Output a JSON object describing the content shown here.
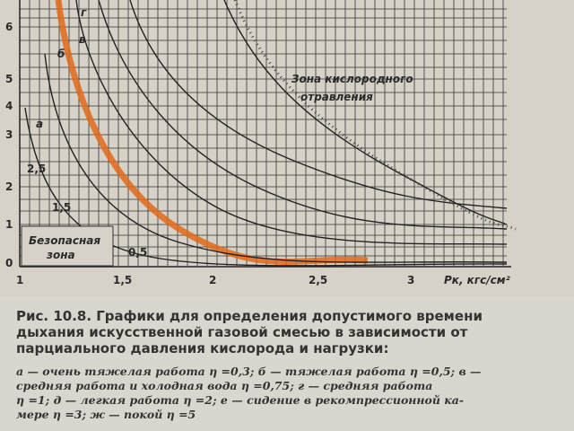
{
  "figure": {
    "y_labels": [
      "6",
      "5",
      "4",
      "3",
      "2",
      "1",
      "0"
    ],
    "inner_labels": [
      "2,5",
      "1,5",
      "0,5"
    ],
    "x_labels": [
      "1",
      "1,5",
      "2",
      "2,5",
      "3"
    ],
    "x_axis_title": "Pк, кгс/см²",
    "curve_labels": [
      "г",
      "в",
      "б",
      "а"
    ],
    "danger_zone": [
      "Зона кислородного",
      "отравления"
    ],
    "safe_zone": [
      "Безопасная",
      "зона"
    ]
  },
  "caption": {
    "title_lines": [
      "Рис. 10.8. Графики для определения допустимого времени",
      "дыхания искусственной газовой смесью в зависимости от",
      "парциального давления кислорода и нагрузки:"
    ],
    "legend_lines": [
      "а — очень тяжелая работа η =0,3;  б — тяжелая работа η =0,5;  в —",
      "средняя работа и холодная вода η =0,75;  г — средняя работа",
      "η =1;  д — легкая работа η =2;  е — сидение в рекомпрессионной ка-",
      "мере η =3;  ж — покой η =5"
    ]
  }
}
